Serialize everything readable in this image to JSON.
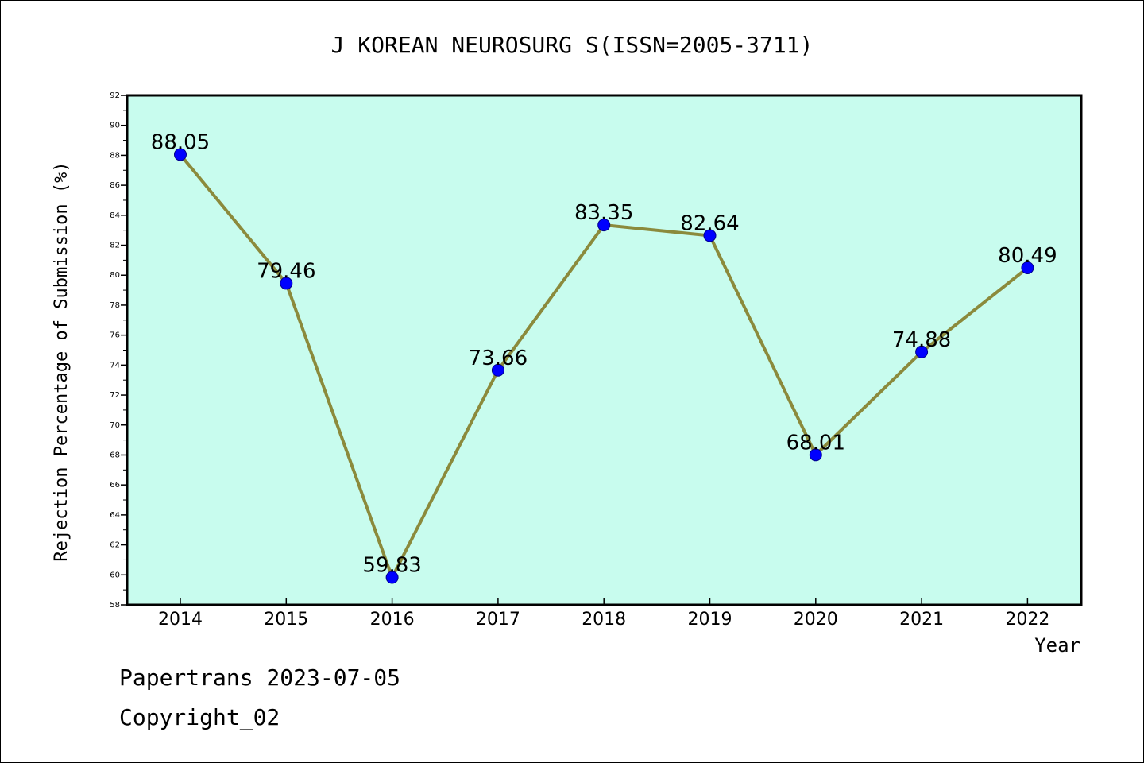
{
  "chart_data": {
    "type": "line",
    "title": "J KOREAN NEUROSURG S(ISSN=2005-3711)",
    "xlabel": "Year",
    "ylabel": "Rejection Percentage of Submission (%)",
    "categories": [
      "2014",
      "2015",
      "2016",
      "2017",
      "2018",
      "2019",
      "2020",
      "2021",
      "2022"
    ],
    "values": [
      88.05,
      79.46,
      59.83,
      73.66,
      83.35,
      82.64,
      68.01,
      74.88,
      80.49
    ],
    "data_labels": [
      "88.05",
      "79.46",
      "59.83",
      "73.66",
      "83.35",
      "82.64",
      "68.01",
      "74.88",
      "80.49"
    ],
    "ylim": [
      58,
      92
    ],
    "yticks": [
      58,
      60,
      62,
      64,
      66,
      68,
      70,
      72,
      74,
      76,
      78,
      80,
      82,
      84,
      86,
      88,
      90,
      92
    ],
    "grid": false,
    "colors": {
      "plot_background": "#c8fcee",
      "line": "#8b8a3c",
      "marker": "#0000ff"
    }
  },
  "footer": {
    "line1": "Papertrans 2023-07-05",
    "line2": "Copyright_02"
  }
}
